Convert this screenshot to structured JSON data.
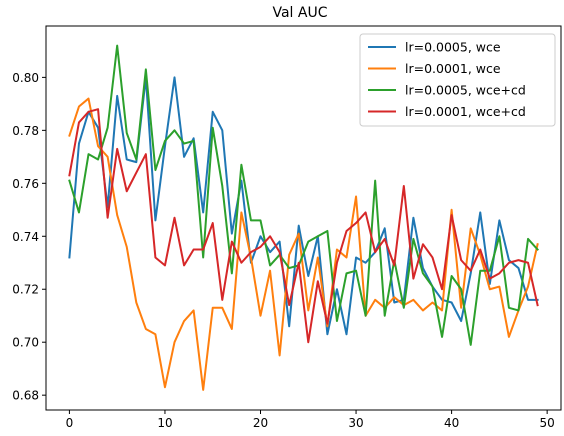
{
  "chart_data": {
    "type": "line",
    "title": "Val AUC",
    "xlabel": "",
    "ylabel": "",
    "xlim": [
      -2.45,
      51.45
    ],
    "ylim": [
      0.6744,
      0.8194
    ],
    "xticks": [
      0,
      10,
      20,
      30,
      40,
      50
    ],
    "yticks": [
      0.68,
      0.7,
      0.72,
      0.74,
      0.76,
      0.78,
      0.8
    ],
    "ytick_labels": [
      "0.68",
      "0.70",
      "0.72",
      "0.74",
      "0.76",
      "0.78",
      "0.80"
    ],
    "grid": false,
    "legend_position": "top-right",
    "x": [
      0,
      1,
      2,
      3,
      4,
      5,
      6,
      7,
      8,
      9,
      10,
      11,
      12,
      13,
      14,
      15,
      16,
      17,
      18,
      19,
      20,
      21,
      22,
      23,
      24,
      25,
      26,
      27,
      28,
      29,
      30,
      31,
      32,
      33,
      34,
      35,
      36,
      37,
      38,
      39,
      40,
      41,
      42,
      43,
      44,
      45,
      46,
      47,
      48,
      49
    ],
    "series": [
      {
        "name": "lr=0.0005, wce",
        "color": "#1f77b4",
        "values": [
          0.732,
          0.775,
          0.787,
          0.781,
          0.751,
          0.793,
          0.769,
          0.768,
          0.8,
          0.746,
          0.774,
          0.8,
          0.77,
          0.777,
          0.749,
          0.787,
          0.78,
          0.741,
          0.761,
          0.73,
          0.74,
          0.734,
          0.738,
          0.706,
          0.744,
          0.725,
          0.74,
          0.703,
          0.72,
          0.703,
          0.732,
          0.73,
          0.734,
          0.743,
          0.715,
          0.716,
          0.747,
          0.728,
          0.721,
          0.716,
          0.715,
          0.708,
          0.726,
          0.749,
          0.722,
          0.746,
          0.731,
          0.728,
          0.716,
          0.716
        ]
      },
      {
        "name": "lr=0.0001, wce",
        "color": "#ff7f0e",
        "values": [
          0.778,
          0.789,
          0.792,
          0.774,
          0.77,
          0.748,
          0.736,
          0.715,
          0.705,
          0.703,
          0.683,
          0.7,
          0.708,
          0.712,
          0.682,
          0.713,
          0.713,
          0.705,
          0.749,
          0.732,
          0.71,
          0.727,
          0.695,
          0.733,
          0.741,
          0.712,
          0.732,
          0.706,
          0.735,
          0.732,
          0.755,
          0.71,
          0.716,
          0.713,
          0.717,
          0.714,
          0.716,
          0.712,
          0.715,
          0.712,
          0.75,
          0.713,
          0.743,
          0.733,
          0.72,
          0.721,
          0.702,
          0.712,
          0.721,
          0.737
        ]
      },
      {
        "name": "lr=0.0005, wce+cd",
        "color": "#2ca02c",
        "values": [
          0.761,
          0.749,
          0.771,
          0.769,
          0.781,
          0.812,
          0.779,
          0.769,
          0.803,
          0.765,
          0.776,
          0.78,
          0.775,
          0.776,
          0.732,
          0.781,
          0.759,
          0.726,
          0.767,
          0.746,
          0.746,
          0.729,
          0.733,
          0.728,
          0.729,
          0.738,
          0.74,
          0.742,
          0.708,
          0.726,
          0.727,
          0.71,
          0.761,
          0.71,
          0.731,
          0.713,
          0.739,
          0.726,
          0.721,
          0.702,
          0.725,
          0.72,
          0.699,
          0.727,
          0.727,
          0.74,
          0.713,
          0.712,
          0.739,
          0.735
        ]
      },
      {
        "name": "lr=0.0001, wce+cd",
        "color": "#d62728",
        "values": [
          0.763,
          0.783,
          0.787,
          0.788,
          0.747,
          0.773,
          0.757,
          0.764,
          0.771,
          0.732,
          0.729,
          0.747,
          0.729,
          0.735,
          0.735,
          0.745,
          0.716,
          0.738,
          0.73,
          0.734,
          0.736,
          0.74,
          0.734,
          0.714,
          0.73,
          0.7,
          0.723,
          0.707,
          0.73,
          0.742,
          0.745,
          0.749,
          0.734,
          0.739,
          0.729,
          0.759,
          0.724,
          0.737,
          0.732,
          0.72,
          0.748,
          0.731,
          0.727,
          0.735,
          0.724,
          0.726,
          0.73,
          0.731,
          0.73,
          0.714
        ]
      }
    ]
  }
}
